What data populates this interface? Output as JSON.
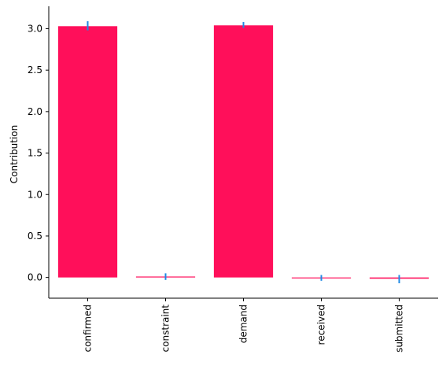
{
  "chart_data": {
    "type": "bar",
    "title": "",
    "xlabel": "",
    "ylabel": "Contribution",
    "categories": [
      "confirmed",
      "constraint",
      "demand",
      "received",
      "submitted"
    ],
    "values": [
      3.03,
      0.0,
      3.04,
      -0.005,
      -0.015
    ],
    "error_bars": [
      {
        "low": 2.98,
        "high": 3.09
      },
      {
        "low": -0.03,
        "high": 0.05
      },
      {
        "low": 3.01,
        "high": 3.08
      },
      {
        "low": -0.04,
        "high": 0.03
      },
      {
        "low": -0.07,
        "high": 0.03
      }
    ],
    "ylim": [
      -0.25,
      3.27
    ],
    "yticks": [
      0.0,
      0.5,
      1.0,
      1.5,
      2.0,
      2.5,
      3.0
    ],
    "ytick_labels": [
      "0.0",
      "0.5",
      "1.0",
      "1.5",
      "2.0",
      "2.5",
      "3.0"
    ],
    "grid": false,
    "legend": "none",
    "bar_color": "#ff0f5a",
    "error_color": "#1e88e5"
  }
}
